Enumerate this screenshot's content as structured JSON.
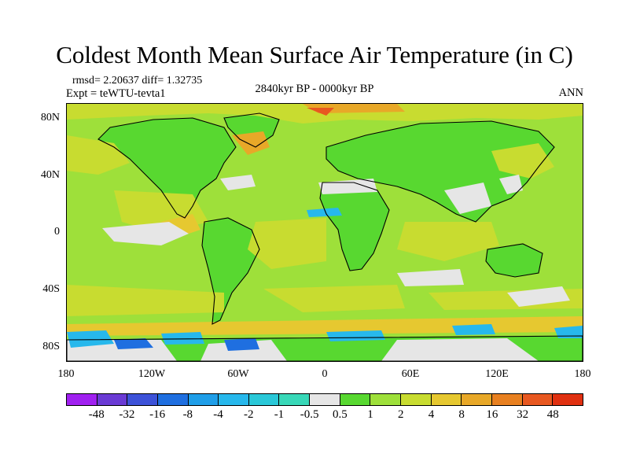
{
  "title": "Coldest Month Mean Surface Air Temperature (in C)",
  "stats": "rmsd= 2.20637 diff= 1.32735",
  "experiment": "Expt = teWTU-tevta1",
  "period": "2840kyr BP - 0000kyr BP",
  "season": "ANN",
  "lat_labels": [
    "80N",
    "40N",
    "0",
    "40S",
    "80S"
  ],
  "lon_labels": [
    "180",
    "120W",
    "60W",
    "0",
    "60E",
    "120E",
    "180"
  ],
  "colorbar": {
    "colors": [
      "#a020f0",
      "#6a3ad4",
      "#3d52d8",
      "#1f6fe0",
      "#1f9ee8",
      "#27b8ec",
      "#2ac8d8",
      "#38d8b8",
      "#e6e6e6",
      "#58d830",
      "#9ee03a",
      "#c8dc30",
      "#e6c830",
      "#e8a828",
      "#e88020",
      "#e85820",
      "#e03010"
    ],
    "labels": [
      "-48",
      "-32",
      "-16",
      "-8",
      "-4",
      "-2",
      "-1",
      "-0.5",
      "0.5",
      "1",
      "2",
      "4",
      "8",
      "16",
      "32",
      "48"
    ]
  },
  "map_colors": {
    "ocean_base": "#9ee03a",
    "land_base": "#58d830",
    "warm": "#c8dc30",
    "warmer": "#e6c830",
    "orange": "#e8a828",
    "red": "#e85820",
    "neutral": "#e6e6e6",
    "cyan": "#27b8ec",
    "blue": "#1f6fe0",
    "coast": "#000000"
  }
}
